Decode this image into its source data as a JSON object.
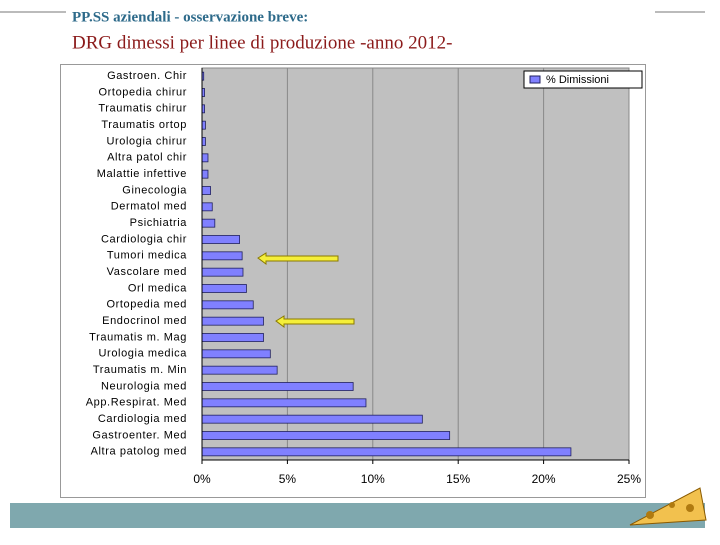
{
  "slide": {
    "kicker": "PP.SS aziendali - osservazione breve:",
    "title": "DRG dimessi per linee di produzione -anno 2012-"
  },
  "chart_data": {
    "type": "bar",
    "orientation": "horizontal",
    "categories": [
      "Gastroen. Chir",
      "Ortopedia chirur",
      "Traumatis chirur",
      "Traumatis ortop",
      "Urologia chirur",
      "Altra patol chir",
      "Malattie infettive",
      "Ginecologia",
      "Dermatol med",
      "Psichiatria",
      "Cardiologia chir",
      "Tumori medica",
      "Vascolare med",
      "Orl medica",
      "Ortopedia med",
      "Endocrinol med",
      "Traumatis m. Mag",
      "Urologia medica",
      "Traumatis m. Min",
      "Neurologia med",
      "App.Respirat. Med",
      "Cardiologia med",
      "Gastroenter. Med",
      "Altra patolog med"
    ],
    "series": [
      {
        "name": "% Dimissioni",
        "color": "#8080ff",
        "values": [
          0.1,
          0.15,
          0.15,
          0.2,
          0.2,
          0.35,
          0.35,
          0.5,
          0.6,
          0.75,
          2.2,
          2.35,
          2.4,
          2.6,
          3.0,
          3.6,
          3.6,
          4.0,
          4.4,
          8.85,
          9.6,
          12.9,
          14.5,
          21.6
        ]
      }
    ],
    "xlim": [
      0,
      25
    ],
    "xticks": [
      {
        "value": 0,
        "label": "0%"
      },
      {
        "value": 5,
        "label": "5%"
      },
      {
        "value": 10,
        "label": "10%"
      },
      {
        "value": 15,
        "label": "15%"
      },
      {
        "value": 20,
        "label": "20%"
      },
      {
        "value": 25,
        "label": "25%"
      }
    ],
    "grid": true,
    "legend": "upper right"
  }
}
